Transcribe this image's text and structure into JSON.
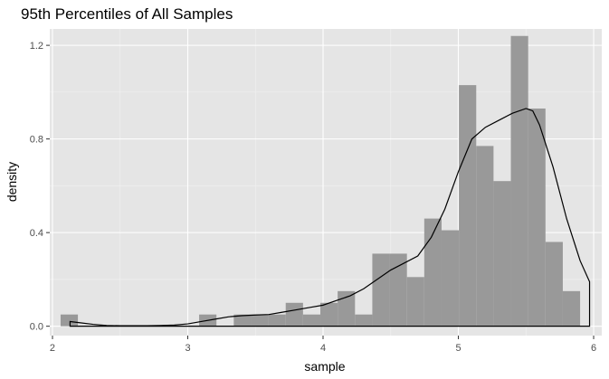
{
  "chart_data": {
    "type": "histogram",
    "title": "95th Percentiles of All Samples",
    "xlabel": "sample",
    "ylabel": "density",
    "xlim": [
      1.98,
      6.06
    ],
    "ylim": [
      -0.04,
      1.27
    ],
    "x_ticks": [
      2,
      3,
      4,
      5,
      6
    ],
    "y_ticks": [
      0.0,
      0.4,
      0.8,
      1.2
    ],
    "x_tick_labels": [
      "2",
      "3",
      "4",
      "5",
      "6"
    ],
    "y_tick_labels": [
      "0.0",
      "0.4",
      "0.8",
      "1.2"
    ],
    "grid": true,
    "background": "#e5e5e5",
    "bar_color": "#999999",
    "line_color": "#000000",
    "bin_width": 0.128,
    "bins": [
      {
        "start": 2.06,
        "value": 0.05
      },
      {
        "start": 2.188,
        "value": 0.0
      },
      {
        "start": 2.316,
        "value": 0.0
      },
      {
        "start": 2.444,
        "value": 0.0
      },
      {
        "start": 2.572,
        "value": 0.0
      },
      {
        "start": 2.7,
        "value": 0.0
      },
      {
        "start": 2.828,
        "value": 0.0
      },
      {
        "start": 2.956,
        "value": 0.0
      },
      {
        "start": 3.084,
        "value": 0.05
      },
      {
        "start": 3.212,
        "value": 0.0
      },
      {
        "start": 3.34,
        "value": 0.05
      },
      {
        "start": 3.468,
        "value": 0.05
      },
      {
        "start": 3.596,
        "value": 0.05
      },
      {
        "start": 3.724,
        "value": 0.1
      },
      {
        "start": 3.852,
        "value": 0.05
      },
      {
        "start": 3.98,
        "value": 0.1
      },
      {
        "start": 4.108,
        "value": 0.15
      },
      {
        "start": 4.236,
        "value": 0.05
      },
      {
        "start": 4.364,
        "value": 0.31
      },
      {
        "start": 4.492,
        "value": 0.31
      },
      {
        "start": 4.62,
        "value": 0.21
      },
      {
        "start": 4.748,
        "value": 0.46
      },
      {
        "start": 4.876,
        "value": 0.41
      },
      {
        "start": 5.004,
        "value": 1.03
      },
      {
        "start": 5.132,
        "value": 0.77
      },
      {
        "start": 5.26,
        "value": 0.62
      },
      {
        "start": 5.388,
        "value": 1.24
      },
      {
        "start": 5.516,
        "value": 0.93
      },
      {
        "start": 5.644,
        "value": 0.36
      },
      {
        "start": 5.772,
        "value": 0.15
      }
    ],
    "density": {
      "x": [
        2.13,
        2.13,
        2.2,
        2.3,
        2.4,
        2.5,
        2.6,
        2.7,
        2.8,
        2.9,
        3.0,
        3.1,
        3.2,
        3.3,
        3.4,
        3.5,
        3.6,
        3.7,
        3.8,
        3.9,
        4.0,
        4.1,
        4.2,
        4.3,
        4.4,
        4.5,
        4.6,
        4.7,
        4.8,
        4.9,
        5.0,
        5.1,
        5.2,
        5.3,
        5.4,
        5.5,
        5.55,
        5.6,
        5.7,
        5.8,
        5.9,
        5.97,
        5.97
      ],
      "y": [
        0.0,
        0.02,
        0.015,
        0.008,
        0.003,
        0.002,
        0.002,
        0.002,
        0.003,
        0.005,
        0.01,
        0.02,
        0.03,
        0.04,
        0.045,
        0.048,
        0.05,
        0.06,
        0.07,
        0.08,
        0.09,
        0.11,
        0.13,
        0.16,
        0.2,
        0.24,
        0.27,
        0.3,
        0.38,
        0.5,
        0.66,
        0.8,
        0.85,
        0.88,
        0.91,
        0.93,
        0.92,
        0.86,
        0.68,
        0.46,
        0.28,
        0.19,
        0.0
      ]
    }
  }
}
